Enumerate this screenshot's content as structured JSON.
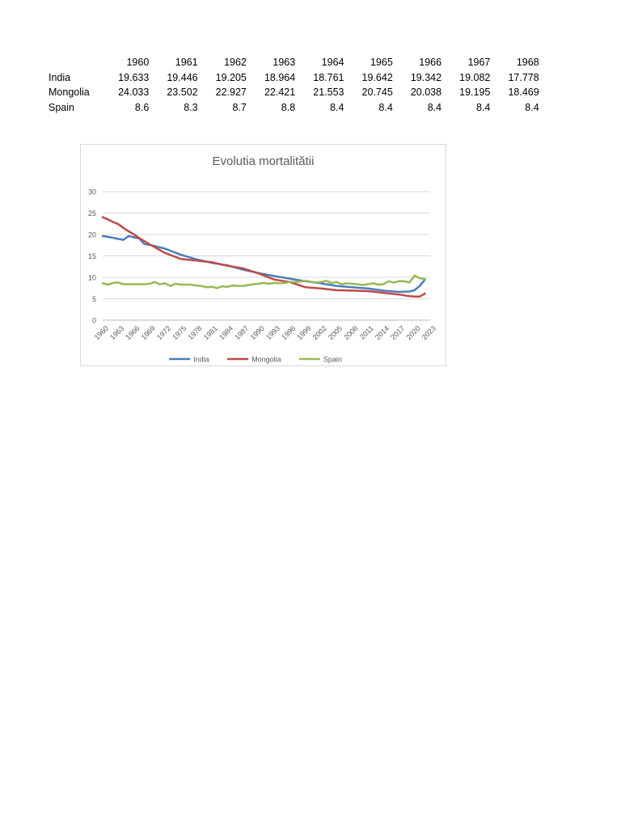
{
  "table": {
    "header_years": [
      "1960",
      "1961",
      "1962",
      "1963",
      "1964",
      "1965",
      "1966",
      "1967",
      "1968"
    ],
    "rows": [
      {
        "label": "India",
        "values": [
          "19.633",
          "19.446",
          "19.205",
          "18.964",
          "18.761",
          "19.642",
          "19.342",
          "19.082",
          "17.778"
        ]
      },
      {
        "label": "Mongolia",
        "values": [
          "24.033",
          "23.502",
          "22.927",
          "22.421",
          "21.553",
          "20.745",
          "20.038",
          "19.195",
          "18.469"
        ]
      },
      {
        "label": "Spain",
        "values": [
          "8.6",
          "8.3",
          "8.7",
          "8.8",
          "8.4",
          "8.4",
          "8.4",
          "8.4",
          "8.4"
        ]
      }
    ]
  },
  "chart_data": {
    "type": "line",
    "title": "Evolutia mortalitătii",
    "xlabel": "",
    "ylabel": "",
    "ylim": [
      0,
      30
    ],
    "yticks": [
      0,
      5,
      10,
      15,
      20,
      25,
      30
    ],
    "xlim": [
      1960,
      2023
    ],
    "xticks": [
      1960,
      1963,
      1966,
      1969,
      1972,
      1975,
      1978,
      1981,
      1984,
      1987,
      1990,
      1993,
      1996,
      1999,
      2002,
      2005,
      2008,
      2011,
      2014,
      2017,
      2020,
      2023
    ],
    "grid": true,
    "legend": "bottom",
    "series": [
      {
        "name": "India",
        "color": "#4a7ebb",
        "x": [
          1960,
          1961,
          1962,
          1963,
          1964,
          1965,
          1966,
          1967,
          1968,
          1969,
          1970,
          1972,
          1975,
          1978,
          1981,
          1984,
          1987,
          1990,
          1993,
          1996,
          1999,
          2002,
          2005,
          2008,
          2011,
          2014,
          2017,
          2019,
          2020,
          2021,
          2022
        ],
        "values": [
          19.633,
          19.446,
          19.205,
          18.964,
          18.761,
          19.642,
          19.342,
          19.082,
          17.778,
          17.6,
          17.3,
          16.7,
          15.3,
          14.2,
          13.4,
          12.8,
          11.8,
          11.0,
          10.3,
          9.7,
          9.1,
          8.6,
          8.0,
          7.7,
          7.4,
          6.9,
          6.6,
          6.7,
          7.0,
          8.0,
          9.5
        ]
      },
      {
        "name": "Mongolia",
        "color": "#be4b48",
        "x": [
          1960,
          1961,
          1962,
          1963,
          1964,
          1965,
          1966,
          1967,
          1968,
          1969,
          1972,
          1975,
          1978,
          1981,
          1984,
          1987,
          1990,
          1993,
          1996,
          1999,
          2002,
          2005,
          2008,
          2011,
          2014,
          2017,
          2019,
          2020,
          2021,
          2022
        ],
        "values": [
          24.033,
          23.502,
          22.927,
          22.421,
          21.553,
          20.745,
          20.038,
          19.195,
          18.469,
          17.7,
          15.7,
          14.3,
          13.9,
          13.5,
          12.7,
          12.1,
          10.9,
          9.5,
          8.9,
          7.7,
          7.4,
          7.0,
          6.9,
          6.8,
          6.4,
          6.0,
          5.6,
          5.5,
          5.5,
          6.2
        ]
      },
      {
        "name": "Spain",
        "color": "#98b954",
        "x": [
          1960,
          1961,
          1962,
          1963,
          1964,
          1965,
          1966,
          1967,
          1968,
          1969,
          1970,
          1971,
          1972,
          1973,
          1974,
          1975,
          1976,
          1977,
          1978,
          1979,
          1980,
          1981,
          1982,
          1983,
          1984,
          1985,
          1986,
          1987,
          1988,
          1989,
          1990,
          1991,
          1992,
          1993,
          1994,
          1995,
          1996,
          1997,
          1998,
          1999,
          2000,
          2001,
          2002,
          2003,
          2004,
          2005,
          2006,
          2007,
          2008,
          2009,
          2010,
          2011,
          2012,
          2013,
          2014,
          2015,
          2016,
          2017,
          2018,
          2019,
          2020,
          2021,
          2022
        ],
        "values": [
          8.6,
          8.3,
          8.7,
          8.8,
          8.4,
          8.4,
          8.4,
          8.4,
          8.4,
          8.5,
          8.9,
          8.4,
          8.6,
          8.0,
          8.5,
          8.3,
          8.3,
          8.3,
          8.1,
          8.0,
          7.7,
          7.8,
          7.5,
          7.9,
          7.8,
          8.1,
          8.0,
          8.0,
          8.2,
          8.4,
          8.5,
          8.7,
          8.5,
          8.7,
          8.6,
          8.7,
          8.9,
          8.9,
          9.0,
          9.2,
          9.0,
          8.8,
          8.9,
          9.2,
          8.7,
          8.9,
          8.4,
          8.6,
          8.5,
          8.4,
          8.2,
          8.4,
          8.6,
          8.3,
          8.4,
          9.1,
          8.8,
          9.1,
          9.1,
          8.8,
          10.4,
          9.8,
          9.6
        ]
      }
    ]
  }
}
